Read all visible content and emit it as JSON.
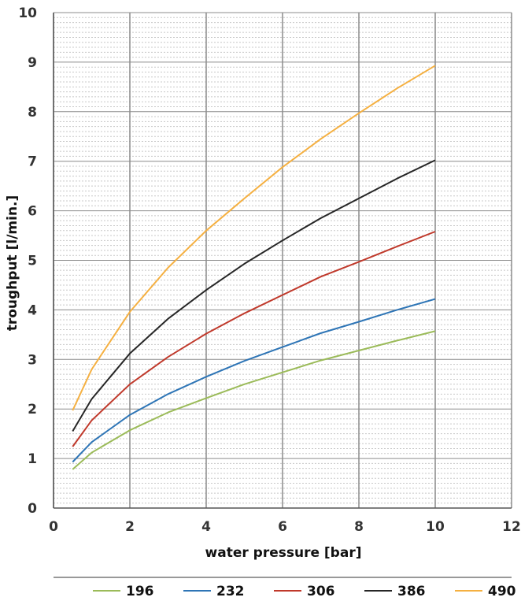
{
  "chart_data": {
    "type": "line",
    "xlabel": "water pressure [bar]",
    "ylabel": "troughput [l/min.]",
    "xlim": [
      0,
      12
    ],
    "ylim": [
      0,
      10
    ],
    "x_ticks": [
      0,
      2,
      4,
      6,
      8,
      10,
      12
    ],
    "y_ticks": [
      0,
      1,
      2,
      3,
      4,
      5,
      6,
      7,
      8,
      9,
      10
    ],
    "grid": "major vertical and horizontal, minor horizontal dotted",
    "legend_position": "bottom",
    "series": [
      {
        "name": "196",
        "color": "#9bbb59",
        "x": [
          0.5,
          1,
          2,
          3,
          4,
          5,
          6,
          7,
          8,
          9,
          10
        ],
        "y": [
          0.78,
          1.12,
          1.57,
          1.93,
          2.22,
          2.5,
          2.74,
          2.98,
          3.18,
          3.38,
          3.57
        ]
      },
      {
        "name": "232",
        "color": "#2e75b6",
        "x": [
          0.5,
          1,
          2,
          3,
          4,
          5,
          6,
          7,
          8,
          9,
          10
        ],
        "y": [
          0.93,
          1.33,
          1.88,
          2.3,
          2.65,
          2.97,
          3.25,
          3.53,
          3.76,
          4.0,
          4.22
        ]
      },
      {
        "name": "306",
        "color": "#c0392b",
        "x": [
          0.5,
          1,
          2,
          3,
          4,
          5,
          6,
          7,
          8,
          9,
          10
        ],
        "y": [
          1.24,
          1.77,
          2.5,
          3.05,
          3.52,
          3.93,
          4.3,
          4.67,
          4.97,
          5.28,
          5.58
        ]
      },
      {
        "name": "386",
        "color": "#262626",
        "x": [
          0.5,
          1,
          2,
          3,
          4,
          5,
          6,
          7,
          8,
          9,
          10
        ],
        "y": [
          1.55,
          2.2,
          3.12,
          3.82,
          4.4,
          4.93,
          5.4,
          5.85,
          6.25,
          6.65,
          7.02
        ]
      },
      {
        "name": "490",
        "color": "#f5b041",
        "x": [
          0.5,
          1,
          2,
          3,
          4,
          5,
          6,
          7,
          8,
          9,
          10
        ],
        "y": [
          1.97,
          2.8,
          3.96,
          4.85,
          5.6,
          6.25,
          6.88,
          7.45,
          7.97,
          8.47,
          8.93
        ]
      }
    ]
  }
}
